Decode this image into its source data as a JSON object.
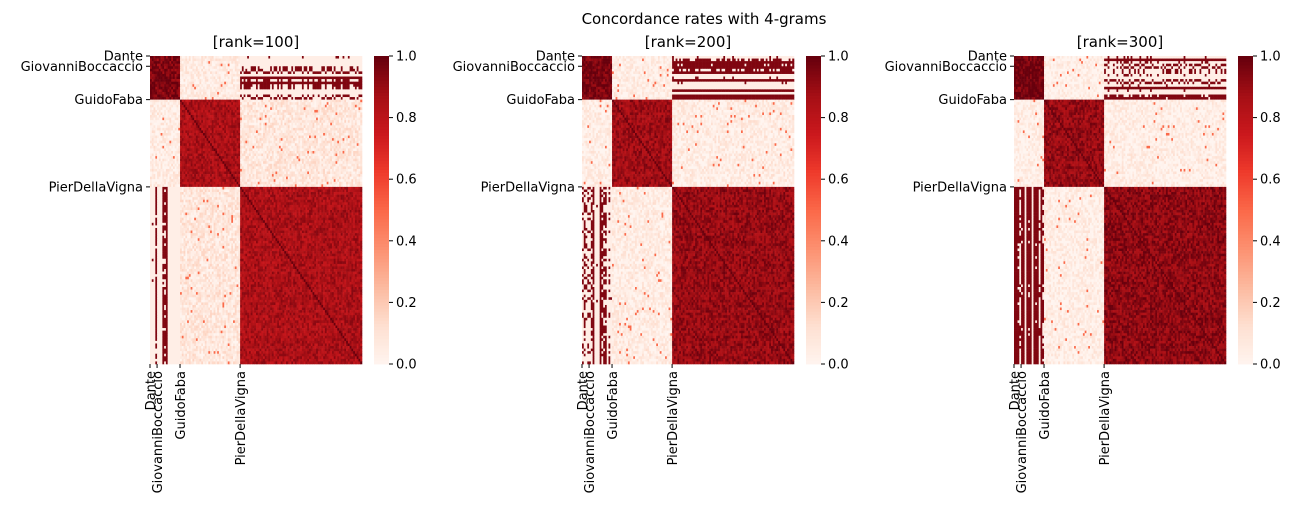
{
  "figure": {
    "suptitle": "Concordance rates with 4-grams"
  },
  "colors": {
    "cmap": "Reds",
    "low": "#fff5f0",
    "high": "#67000d"
  },
  "chart_data": [
    {
      "type": "heatmap",
      "title": "[rank=100]",
      "authors": [
        "Dante",
        "GiovanniBoccaccio",
        "GuidoFaba",
        "PierDellaVigna"
      ],
      "tick_labels": [
        "Dante",
        "GiovanniBoccaccio",
        "GuidoFaba",
        "PierDellaVigna"
      ],
      "colorbar": {
        "vmin": 0.0,
        "vmax": 1.0,
        "ticks": [
          "0.0",
          "0.2",
          "0.4",
          "0.6",
          "0.8",
          "1.0"
        ]
      },
      "block_values": [
        [
          0.95,
          0.95,
          0.05,
          0.6
        ],
        [
          0.95,
          0.95,
          0.05,
          0.6
        ],
        [
          0.05,
          0.05,
          0.85,
          0.08
        ],
        [
          0.6,
          0.6,
          0.08,
          0.85
        ]
      ]
    },
    {
      "type": "heatmap",
      "title": "[rank=200]",
      "authors": [
        "Dante",
        "GiovanniBoccaccio",
        "GuidoFaba",
        "PierDellaVigna"
      ],
      "tick_labels": [
        "Dante",
        "GiovanniBoccaccio",
        "GuidoFaba",
        "PierDellaVigna"
      ],
      "colorbar": {
        "vmin": 0.0,
        "vmax": 1.0,
        "ticks": [
          "0.0",
          "0.2",
          "0.4",
          "0.6",
          "0.8",
          "1.0"
        ]
      },
      "block_values": [
        [
          0.97,
          0.97,
          0.04,
          0.6
        ],
        [
          0.97,
          0.97,
          0.04,
          0.6
        ],
        [
          0.04,
          0.04,
          0.88,
          0.05
        ],
        [
          0.6,
          0.6,
          0.05,
          0.9
        ]
      ]
    },
    {
      "type": "heatmap",
      "title": "[rank=300]",
      "authors": [
        "Dante",
        "GiovanniBoccaccio",
        "GuidoFaba",
        "PierDellaVigna"
      ],
      "tick_labels": [
        "Dante",
        "GiovanniBoccaccio",
        "GuidoFaba",
        "PierDellaVigna"
      ],
      "colorbar": {
        "vmin": 0.0,
        "vmax": 1.0,
        "ticks": [
          "0.0",
          "0.2",
          "0.4",
          "0.6",
          "0.8",
          "1.0"
        ]
      },
      "block_values": [
        [
          0.98,
          0.98,
          0.03,
          0.6
        ],
        [
          0.98,
          0.98,
          0.03,
          0.6
        ],
        [
          0.03,
          0.03,
          0.9,
          0.04
        ],
        [
          0.6,
          0.6,
          0.04,
          0.92
        ]
      ]
    }
  ]
}
